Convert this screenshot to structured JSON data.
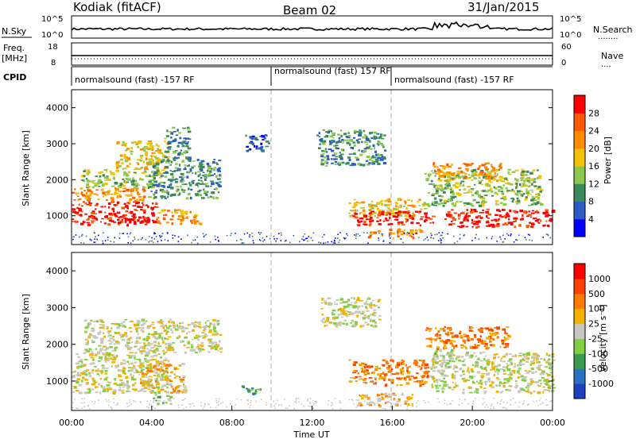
{
  "header": {
    "station": "Kodiak (fitACF)",
    "beam": "Beam 02",
    "date": "31/Jan/2015"
  },
  "strips": {
    "nsky": {
      "label": "N.Sky",
      "left_ticks": [
        "10^5",
        "10^0"
      ],
      "right_ticks": [
        "10^5",
        "10^0"
      ],
      "right_label": "N.Search",
      "right_legend": "........"
    },
    "freq": {
      "label_line1": "Freq.",
      "label_line2": "[MHz]",
      "left_ticks": [
        "18",
        "8"
      ],
      "right_ticks": [
        "60",
        "0"
      ],
      "right_label": "Nave",
      "right_legend": "...."
    },
    "cpid": {
      "label": "CPID",
      "segments": [
        "normalsound (fast) -157 RF",
        "normalsound (fast) 157 RF",
        "normalsound (fast) -157 RF"
      ]
    }
  },
  "chart_data": [
    {
      "type": "heatmap",
      "name": "power",
      "ylabel": "Slant Range [km]",
      "xlabel": "",
      "ylim": [
        200,
        4500
      ],
      "yticks": [
        "1000",
        "2000",
        "3000",
        "4000"
      ],
      "xlim": [
        0,
        24
      ],
      "colorbar": {
        "label": "Power [dB]",
        "ticks": [
          "4",
          "8",
          "12",
          "16",
          "20",
          "24",
          "28"
        ],
        "colors": [
          "#0000ff",
          "#2a5cc4",
          "#3c8a5a",
          "#8cc84b",
          "#f2c200",
          "#ff8c00",
          "#ff5a00",
          "#ff0000"
        ]
      },
      "regions": [
        {
          "t0": 0.0,
          "t1": 4.2,
          "r0": 750,
          "r1": 1400,
          "level": 7
        },
        {
          "t0": 0.0,
          "t1": 3.6,
          "r0": 1400,
          "r1": 1800,
          "level": 5
        },
        {
          "t0": 0.4,
          "t1": 4.6,
          "r0": 1800,
          "r1": 2300,
          "level": 3
        },
        {
          "t0": 2.2,
          "t1": 4.8,
          "r0": 2300,
          "r1": 3100,
          "level": 4
        },
        {
          "t0": 3.8,
          "t1": 7.4,
          "r0": 1500,
          "r1": 2600,
          "level": 2
        },
        {
          "t0": 4.2,
          "t1": 6.4,
          "r0": 800,
          "r1": 1200,
          "level": 5
        },
        {
          "t0": 4.6,
          "t1": 5.8,
          "r0": 2600,
          "r1": 3500,
          "level": 2
        },
        {
          "t0": 8.6,
          "t1": 9.8,
          "r0": 2800,
          "r1": 3300,
          "level": 1
        },
        {
          "t0": 12.2,
          "t1": 15.6,
          "r0": 2400,
          "r1": 3400,
          "level": 2
        },
        {
          "t0": 13.8,
          "t1": 17.6,
          "r0": 1000,
          "r1": 1500,
          "level": 4
        },
        {
          "t0": 14.0,
          "t1": 18.0,
          "r0": 750,
          "r1": 1150,
          "level": 7
        },
        {
          "t0": 14.6,
          "t1": 17.4,
          "r0": 400,
          "r1": 650,
          "level": 5
        },
        {
          "t0": 17.6,
          "t1": 23.4,
          "r0": 1300,
          "r1": 2300,
          "level": 3
        },
        {
          "t0": 18.0,
          "t1": 21.4,
          "r0": 2000,
          "r1": 2500,
          "level": 5
        },
        {
          "t0": 18.6,
          "t1": 24.0,
          "r0": 700,
          "r1": 1200,
          "level": 7
        }
      ]
    },
    {
      "type": "heatmap",
      "name": "velocity",
      "ylabel": "Slant Range [km]",
      "xlabel": "Time UT",
      "ylim": [
        200,
        4500
      ],
      "yticks": [
        "1000",
        "2000",
        "3000",
        "4000"
      ],
      "xlim": [
        0,
        24
      ],
      "xticks": [
        "00:00",
        "04:00",
        "08:00",
        "12:00",
        "16:00",
        "20:00",
        "00:00"
      ],
      "colorbar": {
        "label": "Velocity [m s⁻¹]",
        "ticks": [
          "1000",
          "500",
          "100",
          "25",
          "-25",
          "-100",
          "-500",
          "-1000"
        ],
        "colors": [
          "#1f3fbf",
          "#2a70c0",
          "#3a9a50",
          "#7fd040",
          "#c8c8c0",
          "#f2b200",
          "#ff7a00",
          "#ff4000",
          "#ff0000"
        ]
      },
      "regions": [
        {
          "t0": 0.0,
          "t1": 4.8,
          "r0": 700,
          "r1": 1800,
          "level": 4
        },
        {
          "t0": 0.6,
          "t1": 7.4,
          "r0": 1800,
          "r1": 2700,
          "level": 4
        },
        {
          "t0": 3.4,
          "t1": 5.6,
          "r0": 700,
          "r1": 1500,
          "level": 5
        },
        {
          "t0": 4.0,
          "t1": 5.0,
          "r0": 400,
          "r1": 650,
          "level": 3
        },
        {
          "t0": 8.4,
          "t1": 9.4,
          "r0": 650,
          "r1": 900,
          "level": 2
        },
        {
          "t0": 12.4,
          "t1": 15.4,
          "r0": 2500,
          "r1": 3300,
          "level": 4
        },
        {
          "t0": 13.8,
          "t1": 17.8,
          "r0": 900,
          "r1": 1600,
          "level": 6
        },
        {
          "t0": 14.2,
          "t1": 17.0,
          "r0": 350,
          "r1": 700,
          "level": 5
        },
        {
          "t0": 17.6,
          "t1": 21.8,
          "r0": 1900,
          "r1": 2500,
          "level": 6
        },
        {
          "t0": 17.8,
          "t1": 24.0,
          "r0": 700,
          "r1": 1800,
          "level": 4
        },
        {
          "t0": 18.0,
          "t1": 19.0,
          "r0": 1500,
          "r1": 1900,
          "level": 3
        }
      ]
    }
  ]
}
